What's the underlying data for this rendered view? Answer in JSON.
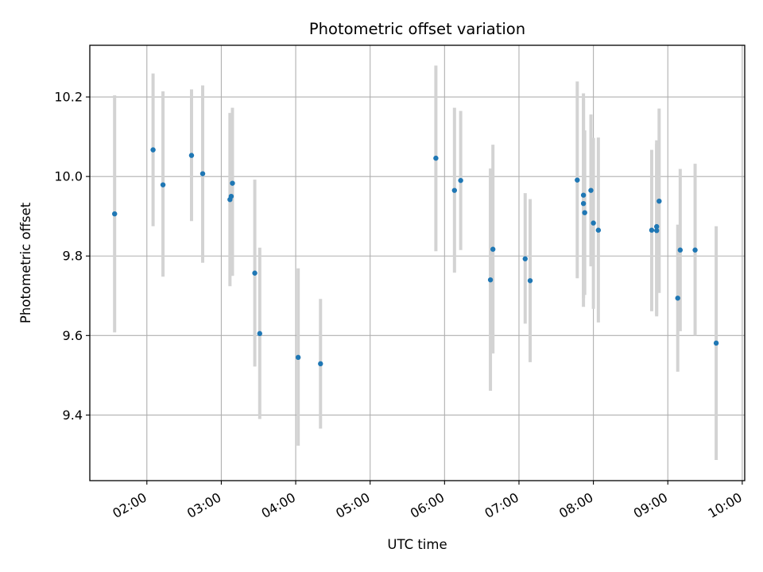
{
  "chart_data": {
    "type": "scatter",
    "title": "Photometric offset variation",
    "xlabel": "UTC time",
    "ylabel": "Photometric offset",
    "x_unit": "UTC time (HH:MM)",
    "xlim": [
      "01:14",
      "10:02"
    ],
    "ylim": [
      9.235,
      10.33
    ],
    "x_ticks": [
      "02:00",
      "03:00",
      "04:00",
      "05:00",
      "06:00",
      "07:00",
      "08:00",
      "09:00",
      "10:00"
    ],
    "y_ticks": [
      9.4,
      9.6,
      9.8,
      10.0,
      10.2
    ],
    "y_tick_labels": [
      "9.4",
      "9.6",
      "9.8",
      "10.0",
      "10.2"
    ],
    "grid": true,
    "marker_color": "#1f77b4",
    "errorbar_color": "#d3d3d3",
    "series": [
      {
        "points": [
          {
            "x": "01:34",
            "y": 9.906,
            "ylow": 9.608,
            "yhigh": 10.204
          },
          {
            "x": "02:05",
            "y": 10.067,
            "ylow": 9.875,
            "yhigh": 10.259
          },
          {
            "x": "02:13",
            "y": 9.979,
            "ylow": 9.748,
            "yhigh": 10.214
          },
          {
            "x": "02:36",
            "y": 10.053,
            "ylow": 9.888,
            "yhigh": 10.219
          },
          {
            "x": "02:45",
            "y": 10.007,
            "ylow": 9.783,
            "yhigh": 10.229
          },
          {
            "x": "03:07",
            "y": 9.942,
            "ylow": 9.724,
            "yhigh": 10.16
          },
          {
            "x": "03:08",
            "y": 9.95,
            "ylow": 9.775,
            "yhigh": 10.125
          },
          {
            "x": "03:09",
            "y": 9.983,
            "ylow": 9.75,
            "yhigh": 10.173
          },
          {
            "x": "03:27",
            "y": 9.757,
            "ylow": 9.522,
            "yhigh": 9.992
          },
          {
            "x": "03:31",
            "y": 9.605,
            "ylow": 9.39,
            "yhigh": 9.821
          },
          {
            "x": "04:02",
            "y": 9.545,
            "ylow": 9.323,
            "yhigh": 9.769
          },
          {
            "x": "04:20",
            "y": 9.529,
            "ylow": 9.366,
            "yhigh": 9.692
          },
          {
            "x": "05:53",
            "y": 10.046,
            "ylow": 9.812,
            "yhigh": 10.279
          },
          {
            "x": "06:08",
            "y": 9.965,
            "ylow": 9.758,
            "yhigh": 10.173
          },
          {
            "x": "06:13",
            "y": 9.99,
            "ylow": 9.815,
            "yhigh": 10.165
          },
          {
            "x": "06:37",
            "y": 9.74,
            "ylow": 9.461,
            "yhigh": 10.02
          },
          {
            "x": "06:39",
            "y": 9.817,
            "ylow": 9.555,
            "yhigh": 10.08
          },
          {
            "x": "07:05",
            "y": 9.793,
            "ylow": 9.63,
            "yhigh": 9.958
          },
          {
            "x": "07:09",
            "y": 9.738,
            "ylow": 9.533,
            "yhigh": 9.943
          },
          {
            "x": "07:47",
            "y": 9.991,
            "ylow": 9.744,
            "yhigh": 10.239
          },
          {
            "x": "07:52",
            "y": 9.953,
            "ylow": 9.694,
            "yhigh": 10.209
          },
          {
            "x": "07:52",
            "y": 9.932,
            "ylow": 9.672,
            "yhigh": 10.195
          },
          {
            "x": "07:53",
            "y": 9.909,
            "ylow": 9.702,
            "yhigh": 10.116
          },
          {
            "x": "07:58",
            "y": 9.965,
            "ylow": 9.774,
            "yhigh": 10.156
          },
          {
            "x": "08:00",
            "y": 9.883,
            "ylow": 9.667,
            "yhigh": 10.097
          },
          {
            "x": "08:04",
            "y": 9.865,
            "ylow": 9.633,
            "yhigh": 10.098
          },
          {
            "x": "08:47",
            "y": 9.865,
            "ylow": 9.661,
            "yhigh": 10.067
          },
          {
            "x": "08:51",
            "y": 9.874,
            "ylow": 9.652,
            "yhigh": 10.091
          },
          {
            "x": "08:51",
            "y": 9.864,
            "ylow": 9.648,
            "yhigh": 10.082
          },
          {
            "x": "08:53",
            "y": 9.938,
            "ylow": 9.707,
            "yhigh": 10.171
          },
          {
            "x": "09:08",
            "y": 9.694,
            "ylow": 9.509,
            "yhigh": 9.879
          },
          {
            "x": "09:10",
            "y": 9.815,
            "ylow": 9.611,
            "yhigh": 10.019
          },
          {
            "x": "09:22",
            "y": 9.815,
            "ylow": 9.6,
            "yhigh": 10.032
          },
          {
            "x": "09:39",
            "y": 9.581,
            "ylow": 9.287,
            "yhigh": 9.875
          }
        ]
      }
    ]
  }
}
